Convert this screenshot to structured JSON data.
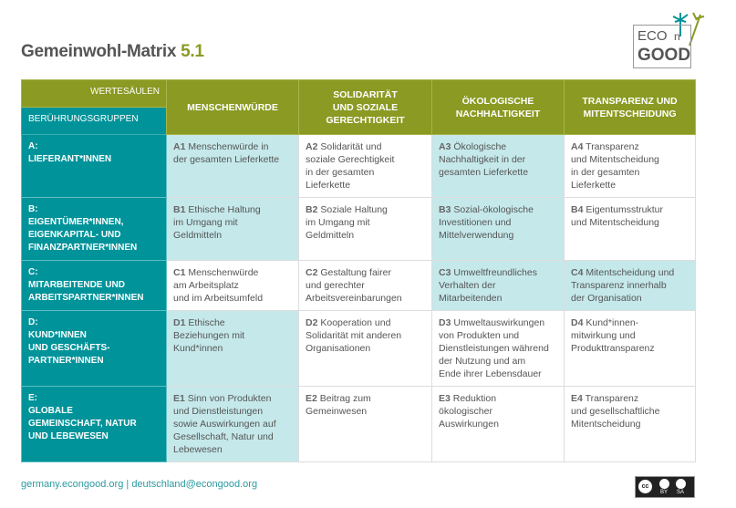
{
  "title": {
    "main": "Gemeinwohl-Matrix",
    "version": "5.1"
  },
  "logo": {
    "eco": "ECO",
    "n": "n",
    "good": "GOOD"
  },
  "header": {
    "wertesaeulen": "WERTESÄULEN",
    "beruehrungsgruppen": "BERÜHRUNGSGRUPPEN",
    "columns": [
      "MENSCHENWÜRDE",
      "SOLIDARITÄT\nUND SOZIALE\nGERECHTIGKEIT",
      "ÖKOLOGISCHE\nNACHHALTIGKEIT",
      "TRANSPARENZ UND\nMITENTSCHEIDUNG"
    ]
  },
  "rows": [
    {
      "group": "A:\nLIEFERANT*INNEN",
      "cells": [
        {
          "code": "A1",
          "text": " Menschenwürde in\nder gesamten Lieferkette",
          "highlight": true
        },
        {
          "code": "A2",
          "text": " Solidarität und\nsoziale Gerechtigkeit\nin der gesamten\nLieferkette",
          "highlight": false
        },
        {
          "code": "A3",
          "text": " Ökologische\nNachhaltigkeit in der\ngesamten Lieferkette",
          "highlight": true
        },
        {
          "code": "A4",
          "text": " Transparenz\nund Mitentscheidung\nin der gesamten\nLieferkette",
          "highlight": false
        }
      ]
    },
    {
      "group": "B:\nEIGENTÜMER*INNEN,\nEIGENKAPITAL- UND\nFINANZPARTNER*INNEN",
      "cells": [
        {
          "code": "B1",
          "text": " Ethische Haltung\nim Umgang mit\nGeldmitteln",
          "highlight": true
        },
        {
          "code": "B2",
          "text": " Soziale Haltung\nim Umgang mit\nGeldmitteln",
          "highlight": false
        },
        {
          "code": "B3",
          "text": " Sozial-ökologische\nInvestitionen und\nMittelverwendung",
          "highlight": true
        },
        {
          "code": "B4",
          "text": " Eigentumsstruktur\nund Mitentscheidung",
          "highlight": false
        }
      ]
    },
    {
      "group": "C:\nMITARBEITENDE UND\nARBEITSPARTNER*INNEN",
      "cells": [
        {
          "code": "C1",
          "text": " Menschenwürde\nam Arbeitsplatz\nund im Arbeitsumfeld",
          "highlight": false
        },
        {
          "code": "C2",
          "text": " Gestaltung fairer\nund gerechter\nArbeitsvereinbarungen",
          "highlight": false
        },
        {
          "code": "C3",
          "text": " Umweltfreundliches\nVerhalten der\nMitarbeitenden",
          "highlight": true
        },
        {
          "code": "C4",
          "text": " Mitentscheidung und\nTransparenz innerhalb\nder Organisation",
          "highlight": true
        }
      ]
    },
    {
      "group": "D:\nKUND*INNEN\nUND GESCHÄFTS-\nPARTNER*INNEN",
      "cells": [
        {
          "code": "D1",
          "text": " Ethische\nBeziehungen mit\nKund*innen",
          "highlight": true
        },
        {
          "code": "D2",
          "text": " Kooperation und\nSolidarität mit anderen\nOrganisationen",
          "highlight": false
        },
        {
          "code": "D3",
          "text": " Umweltauswirkungen\nvon Produkten und\nDienstleistungen während\nder Nutzung und am\nEnde ihrer Lebensdauer",
          "highlight": false
        },
        {
          "code": "D4",
          "text": " Kund*innen-\nmitwirkung und\nProdukttransparenz",
          "highlight": false
        }
      ]
    },
    {
      "group": "E:\nGLOBALE\nGEMEINSCHAFT, NATUR\nUND LEBEWESEN",
      "cells": [
        {
          "code": "E1",
          "text": " Sinn von Produkten\nund Dienstleistungen\nsowie Auswirkungen auf\nGesellschaft, Natur und\nLebewesen",
          "highlight": true
        },
        {
          "code": "E2",
          "text": " Beitrag zum\nGemeinwesen",
          "highlight": false
        },
        {
          "code": "E3",
          "text": " Reduktion\nökologischer\nAuswirkungen",
          "highlight": false
        },
        {
          "code": "E4",
          "text": " Transparenz\nund gesellschaftliche\nMitentscheidung",
          "highlight": false
        }
      ]
    }
  ],
  "footer": {
    "website": "germany.econgood.org",
    "separator": " | ",
    "email": "deutschland@econgood.org"
  },
  "license": {
    "cc": "cc",
    "by": "BY",
    "sa": "SA"
  },
  "colors": {
    "olive": "#8a9a22",
    "teal": "#00939a",
    "highlight": "#c5e8ea"
  }
}
